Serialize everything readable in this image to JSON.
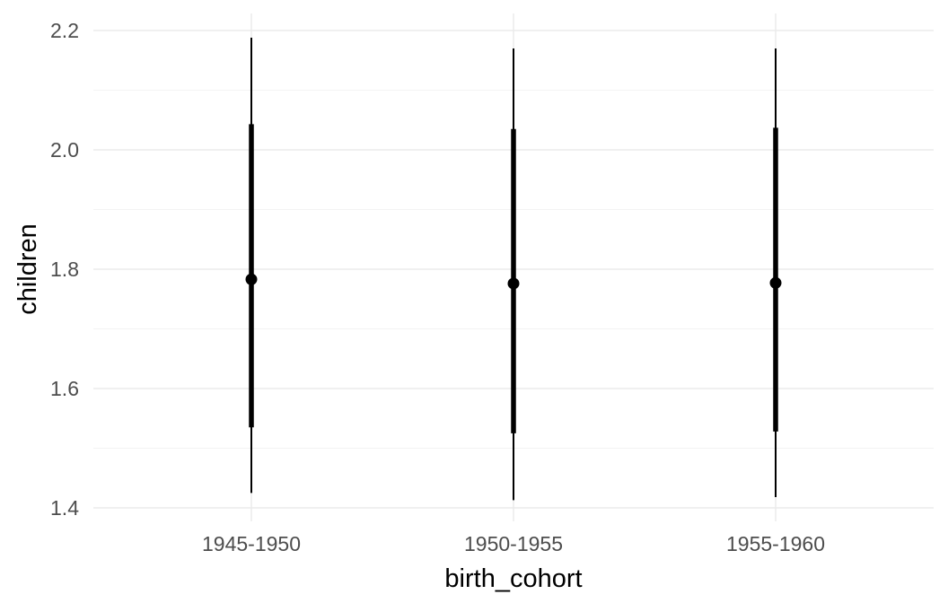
{
  "chart_data": {
    "type": "pointrange",
    "xlabel": "birth_cohort",
    "ylabel": "children",
    "categories": [
      "1945-1950",
      "1950-1955",
      "1955-1960"
    ],
    "series": [
      {
        "estimate": [
          1.783,
          1.776,
          1.777
        ],
        "inner_low": [
          1.535,
          1.525,
          1.528
        ],
        "inner_high": [
          2.043,
          2.035,
          2.037
        ],
        "outer_low": [
          1.425,
          1.413,
          1.418
        ],
        "outer_high": [
          2.188,
          2.17,
          2.17
        ]
      }
    ],
    "yticks": [
      "1.4",
      "1.6",
      "1.8",
      "2.0",
      "2.2"
    ],
    "ylim": [
      1.4,
      2.2
    ],
    "grid": true,
    "colors": {
      "mark": "#000000",
      "grid_major": "#ebebeb",
      "grid_minor": "#f3f3f3",
      "tick_text": "#4d4d4d"
    }
  }
}
